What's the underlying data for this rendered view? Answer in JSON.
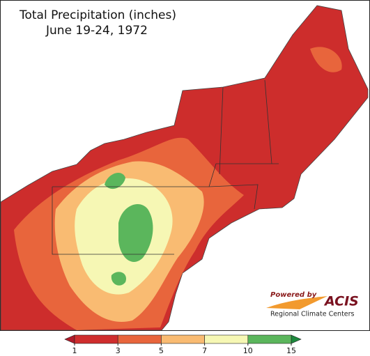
{
  "title": [
    "Total Precipitation (inches)",
    "June 19-24, 1972"
  ],
  "legend": {
    "ticks": [
      1,
      3,
      5,
      7,
      10,
      15
    ],
    "colors": [
      "#cf2e2e",
      "#e8653c",
      "#f9bb72",
      "#f6f7b4",
      "#5bb65c"
    ],
    "under_color": "#b11a2a",
    "over_color": "#1d8a3e"
  },
  "branding": {
    "powered_by": "Powered by",
    "name": "ACIS",
    "org": "Regional Climate Centers"
  }
}
